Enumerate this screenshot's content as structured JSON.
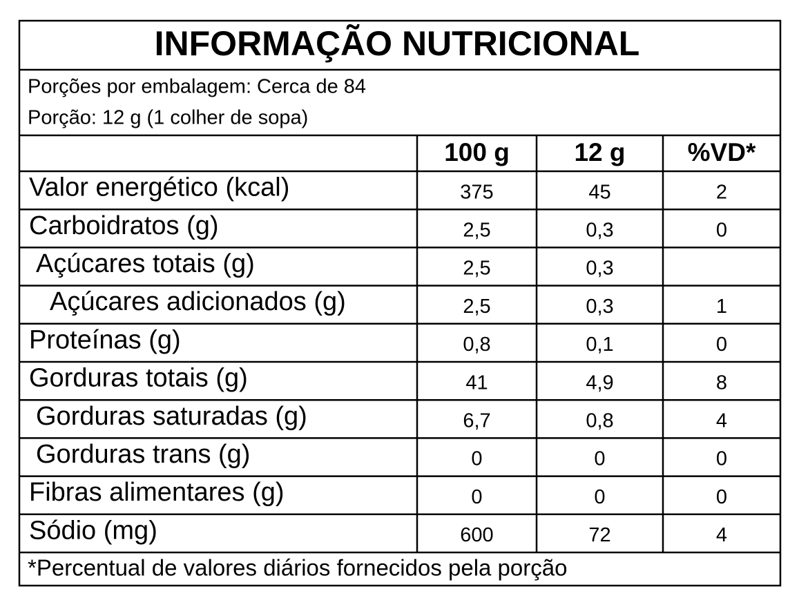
{
  "header": {
    "title": "INFORMAÇÃO NUTRICIONAL",
    "servings_per_package": "Porções por embalagem: Cerca de 84",
    "serving_size": "Porção: 12 g (1 colher de sopa)"
  },
  "table": {
    "columns": [
      "100 g",
      "12 g",
      "%VD*"
    ],
    "rows": [
      [
        "Valor energético (kcal)",
        "375",
        "45",
        "2"
      ],
      [
        "Carboidratos (g)",
        "2,5",
        "0,3",
        "0"
      ],
      [
        "Açúcares totais (g)",
        "2,5",
        "0,3",
        null
      ],
      [
        "Açúcares adicionados (g)",
        "2,5",
        "0,3",
        "1"
      ],
      [
        "Proteínas (g)",
        "0,8",
        "0,1",
        "0"
      ],
      [
        "Gorduras totais (g)",
        "41",
        "4,9",
        "8"
      ],
      [
        "Gorduras saturadas (g)",
        "6,7",
        "0,8",
        "4"
      ],
      [
        "Gorduras trans (g)",
        "0",
        "0",
        "0"
      ],
      [
        "Fibras alimentares (g)",
        "0",
        "0",
        "0"
      ],
      [
        "Sódio (mg)",
        "600",
        "72",
        "4"
      ]
    ]
  },
  "footer": {
    "note": "*Percentual de valores diários fornecidos pela porção"
  }
}
